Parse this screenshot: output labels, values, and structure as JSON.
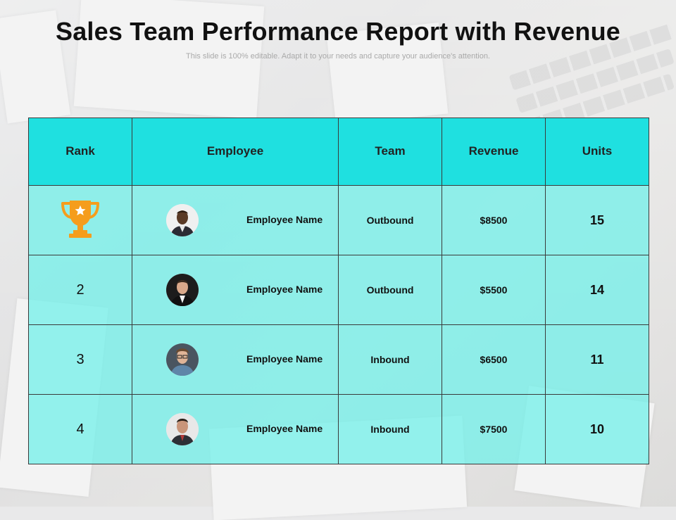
{
  "slide": {
    "title": "Sales Team Performance Report with Revenue",
    "subtitle": "This slide is 100% editable. Adapt it to your needs and capture your audience's attention."
  },
  "table": {
    "headers": [
      "Rank",
      "Employee",
      "Team",
      "Revenue",
      "Units"
    ],
    "rows": [
      {
        "rank": "",
        "rank_icon": "trophy-icon",
        "employee": "Employee Name",
        "team": "Outbound",
        "revenue": "$8500",
        "units": "15"
      },
      {
        "rank": "2",
        "employee": "Employee Name",
        "team": "Outbound",
        "revenue": "$5500",
        "units": "14"
      },
      {
        "rank": "3",
        "employee": "Employee Name",
        "team": "Inbound",
        "revenue": "$6500",
        "units": "11"
      },
      {
        "rank": "4",
        "employee": "Employee Name",
        "team": "Inbound",
        "revenue": "$7500",
        "units": "10"
      }
    ]
  },
  "colors": {
    "header_bg": "#1fe0e0",
    "row_bg": "#76efe9",
    "trophy": "#f59d1c"
  }
}
